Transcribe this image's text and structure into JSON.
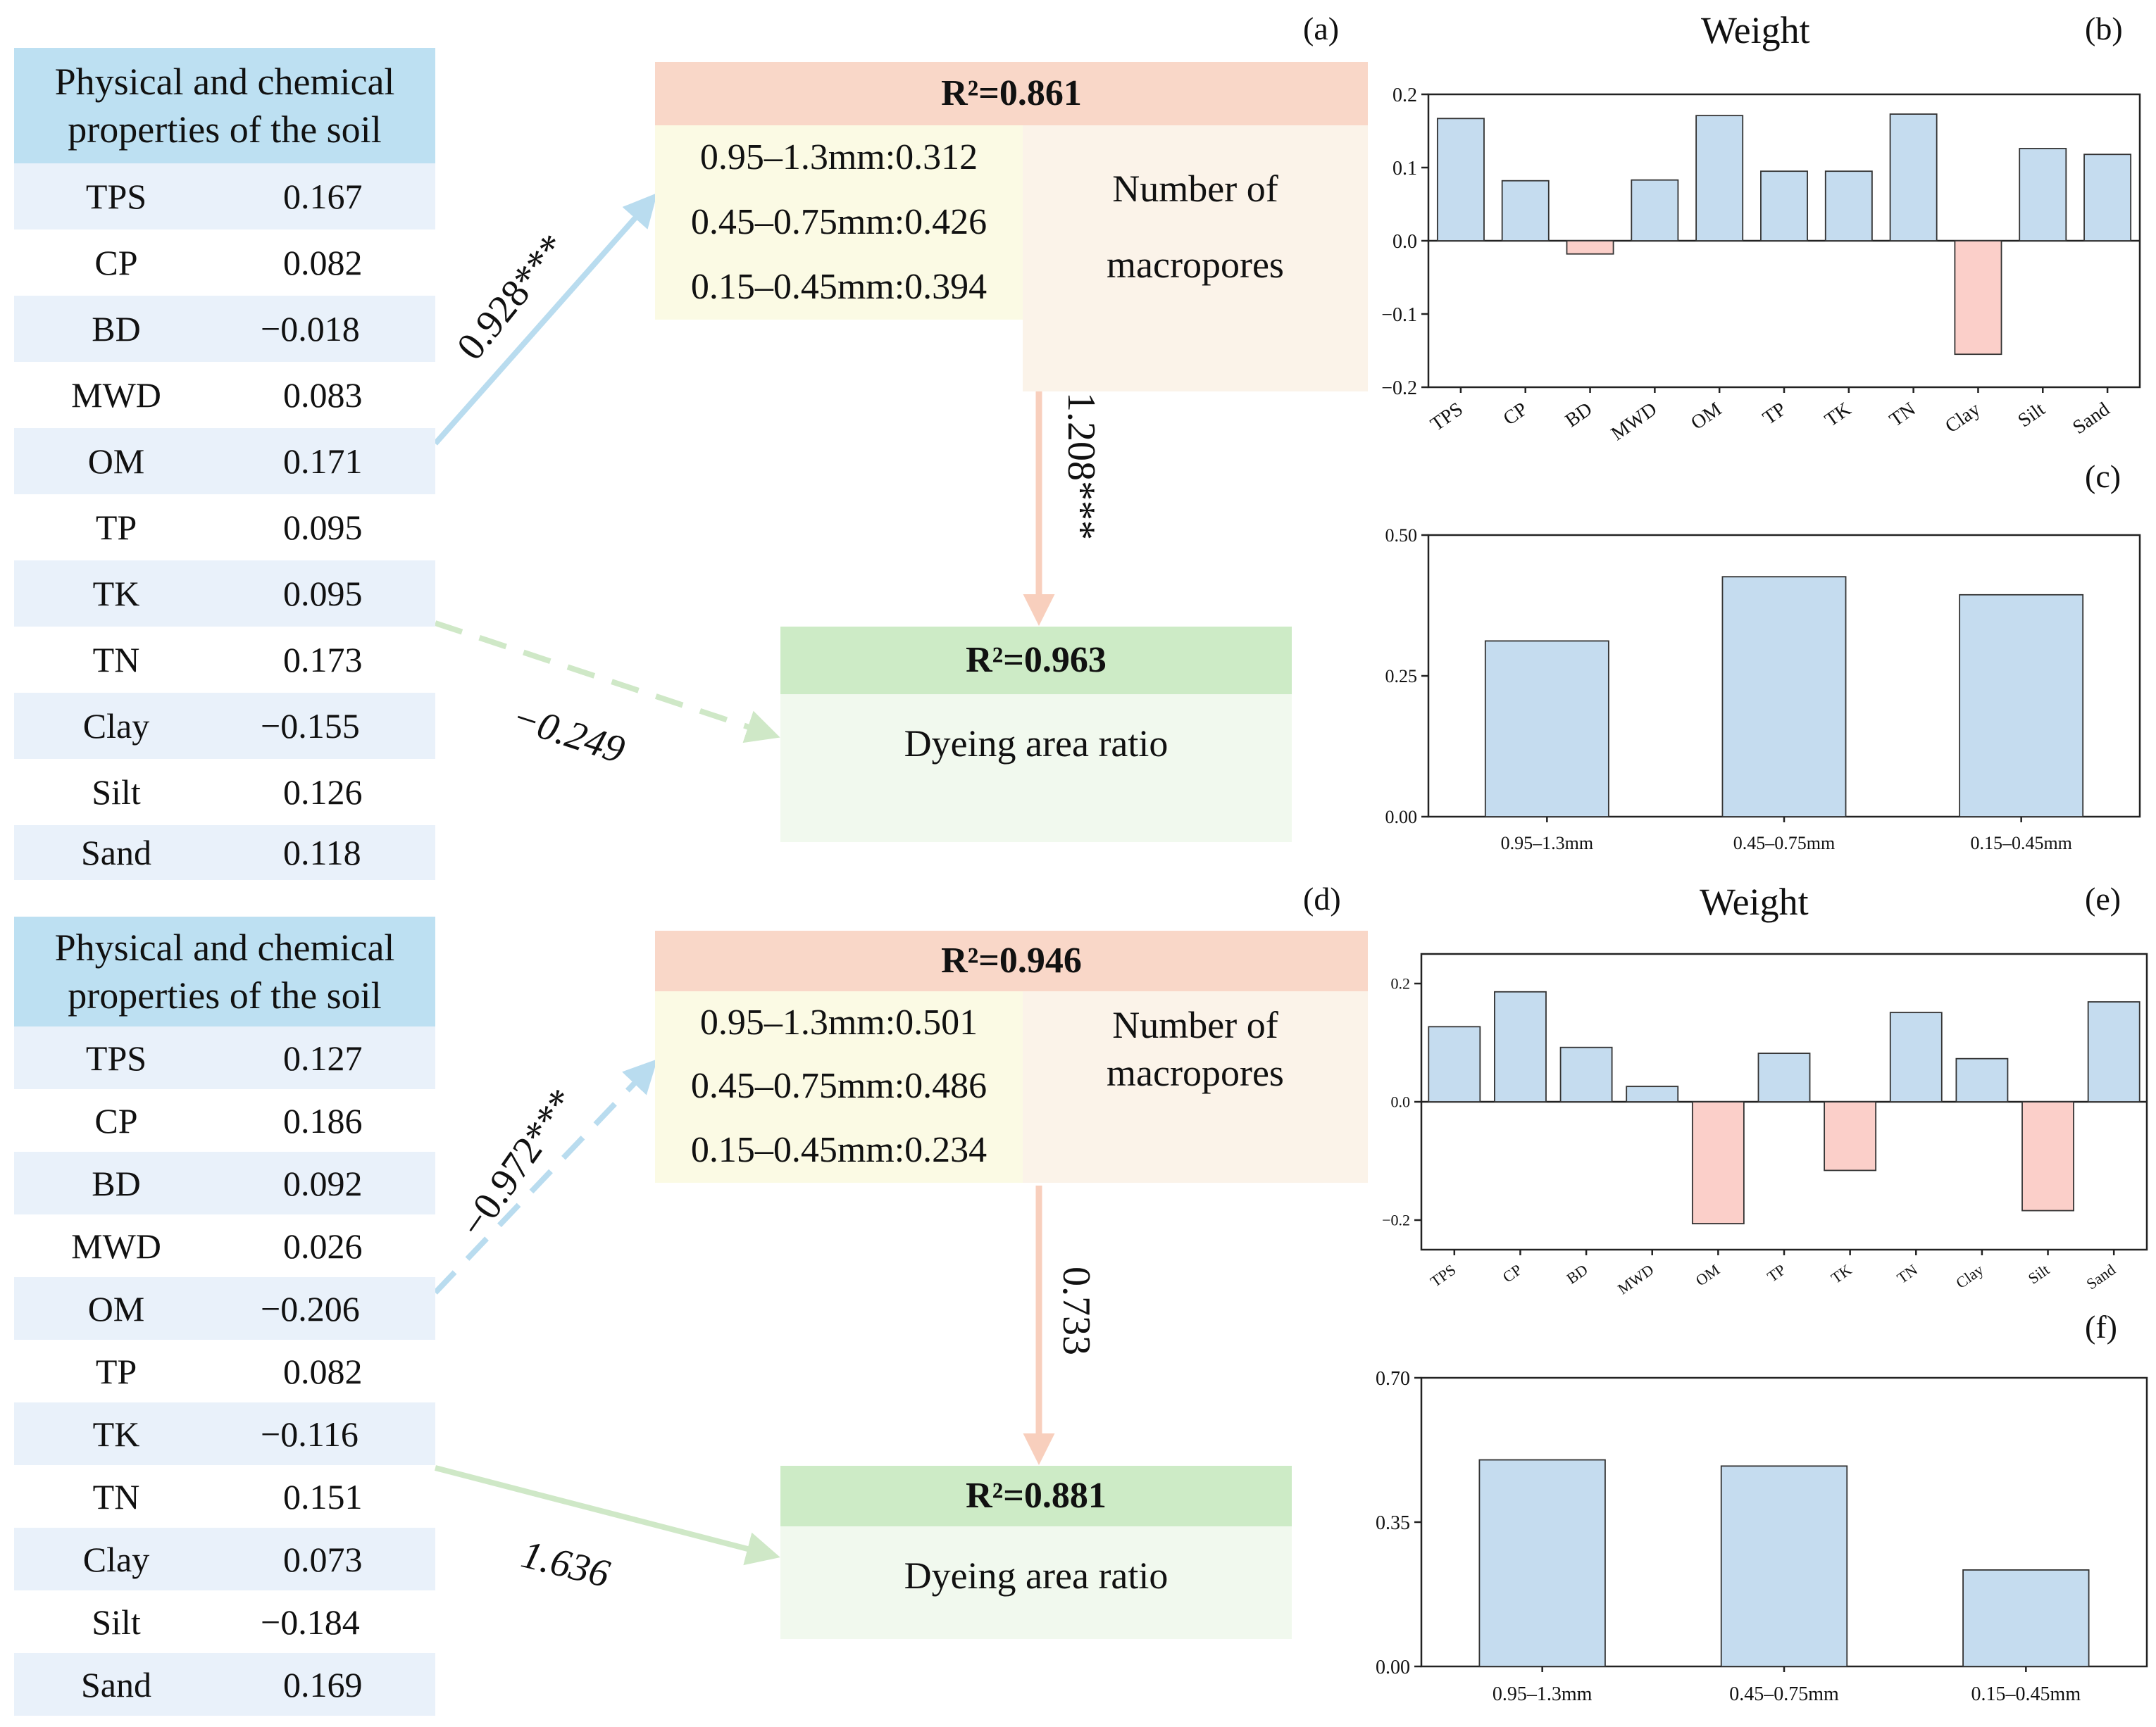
{
  "panel_letters": {
    "a": "(a)",
    "b": "(b)",
    "c": "(c)",
    "d": "(d)",
    "e": "(e)",
    "f": "(f)"
  },
  "top": {
    "table_header": [
      "Physical and chemical",
      "properties of the soil"
    ],
    "properties": [
      {
        "name": "TPS",
        "value": "0.167"
      },
      {
        "name": "CP",
        "value": "0.082"
      },
      {
        "name": "BD",
        "value": "−0.018"
      },
      {
        "name": "MWD",
        "value": "0.083"
      },
      {
        "name": "OM",
        "value": "0.171"
      },
      {
        "name": "TP",
        "value": "0.095"
      },
      {
        "name": "TK",
        "value": "0.095"
      },
      {
        "name": "TN",
        "value": "0.173"
      },
      {
        "name": "Clay",
        "value": "−0.155"
      },
      {
        "name": "Silt",
        "value": "0.126"
      },
      {
        "name": "Sand",
        "value": "0.118"
      }
    ],
    "macropore_r2": "R²=0.861",
    "macropore_items": [
      "0.95–1.3mm:0.312",
      "0.45–0.75mm:0.426",
      "0.15–0.45mm:0.394"
    ],
    "macropore_label": [
      "Number of",
      "macropores"
    ],
    "dye_r2": "R²=0.963",
    "dye_label": "Dyeing area ratio",
    "coef_soil_macro": "0.928***",
    "coef_macro_dye": "1.208***",
    "coef_soil_dye": "−0.249"
  },
  "bottom": {
    "table_header": [
      "Physical and chemical",
      "properties of the soil"
    ],
    "properties": [
      {
        "name": "TPS",
        "value": "0.127"
      },
      {
        "name": "CP",
        "value": "0.186"
      },
      {
        "name": "BD",
        "value": "0.092"
      },
      {
        "name": "MWD",
        "value": "0.026"
      },
      {
        "name": "OM",
        "value": "−0.206"
      },
      {
        "name": "TP",
        "value": "0.082"
      },
      {
        "name": "TK",
        "value": "−0.116"
      },
      {
        "name": "TN",
        "value": "0.151"
      },
      {
        "name": "Clay",
        "value": "0.073"
      },
      {
        "name": "Silt",
        "value": "−0.184"
      },
      {
        "name": "Sand",
        "value": "0.169"
      }
    ],
    "macropore_r2": "R²=0.946",
    "macropore_items": [
      "0.95–1.3mm:0.501",
      "0.45–0.75mm:0.486",
      "0.15–0.45mm:0.234"
    ],
    "macropore_label": [
      "Number of",
      "macropores"
    ],
    "dye_r2": "R²=0.881",
    "dye_label": "Dyeing area ratio",
    "coef_soil_macro": "−0.972***",
    "coef_macro_dye": "0.733",
    "coef_soil_dye": "1.636"
  },
  "colors": {
    "positive_bar": "#c5dcef",
    "negative_bar": "#fbcfc9",
    "arrow_blue": "#b9dcef",
    "arrow_orange": "#f8cfbd",
    "arrow_green": "#cfe8c7"
  },
  "chart_data": [
    {
      "id": "b",
      "type": "bar",
      "title": "Weight",
      "categories": [
        "TPS",
        "CP",
        "BD",
        "MWD",
        "OM",
        "TP",
        "TK",
        "TN",
        "Clay",
        "Silt",
        "Sand"
      ],
      "values": [
        0.167,
        0.082,
        -0.018,
        0.083,
        0.171,
        0.095,
        0.095,
        0.173,
        -0.155,
        0.126,
        0.118
      ],
      "ylim": [
        -0.2,
        0.2
      ],
      "yticks": [
        "0.2",
        "0.1",
        "0.0",
        "−0.1",
        "−0.2"
      ],
      "ytick_values": [
        0.2,
        0.1,
        0.0,
        -0.1,
        -0.2
      ]
    },
    {
      "id": "c",
      "type": "bar",
      "title": "",
      "categories": [
        "0.95–1.3mm",
        "0.45–0.75mm",
        "0.15–0.45mm"
      ],
      "values": [
        0.312,
        0.426,
        0.394
      ],
      "ylim": [
        0,
        0.5
      ],
      "yticks": [
        "0.50",
        "0.25",
        "0.00"
      ],
      "ytick_values": [
        0.5,
        0.25,
        0.0
      ]
    },
    {
      "id": "e",
      "type": "bar",
      "title": "Weight",
      "categories": [
        "TPS",
        "CP",
        "BD",
        "MWD",
        "OM",
        "TP",
        "TK",
        "TN",
        "Clay",
        "Silt",
        "Sand"
      ],
      "values": [
        0.127,
        0.186,
        0.092,
        0.026,
        -0.206,
        0.082,
        -0.116,
        0.151,
        0.073,
        -0.184,
        0.169
      ],
      "ylim": [
        -0.25,
        0.25
      ],
      "yticks": [
        "0.2",
        "0.0",
        "−0.2"
      ],
      "ytick_values": [
        0.2,
        0.0,
        -0.2
      ]
    },
    {
      "id": "f",
      "type": "bar",
      "title": "",
      "categories": [
        "0.95–1.3mm",
        "0.45–0.75mm",
        "0.15–0.45mm"
      ],
      "values": [
        0.501,
        0.486,
        0.234
      ],
      "ylim": [
        0,
        0.7
      ],
      "yticks": [
        "0.70",
        "0.35",
        "0.00"
      ],
      "ytick_values": [
        0.7,
        0.35,
        0.0
      ]
    }
  ]
}
